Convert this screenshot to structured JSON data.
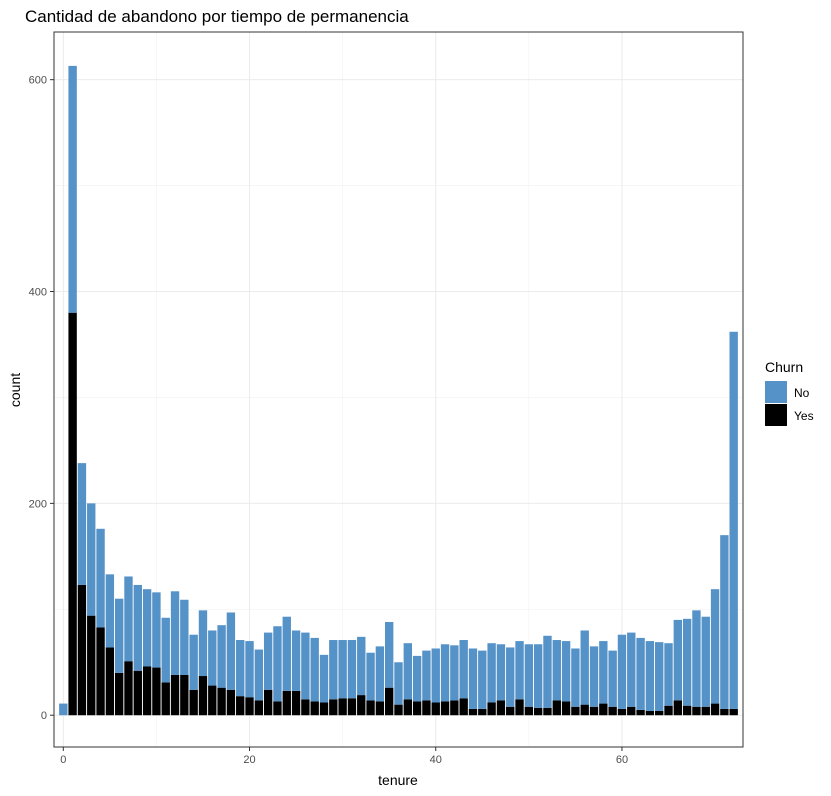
{
  "chart_data": {
    "type": "bar",
    "stacked": true,
    "title": "Cantidad de abandono por tiempo de permanencia",
    "xlabel": "tenure",
    "ylabel": "count",
    "xlim": [
      -1,
      73
    ],
    "ylim": [
      -30,
      645
    ],
    "xticks": [
      0,
      20,
      40,
      60
    ],
    "yticks": [
      0,
      200,
      400,
      600
    ],
    "grid": true,
    "legend": {
      "title": "Churn",
      "position": "right"
    },
    "x": [
      0,
      1,
      2,
      3,
      4,
      5,
      6,
      7,
      8,
      9,
      10,
      11,
      12,
      13,
      14,
      15,
      16,
      17,
      18,
      19,
      20,
      21,
      22,
      23,
      24,
      25,
      26,
      27,
      28,
      29,
      30,
      31,
      32,
      33,
      34,
      35,
      36,
      37,
      38,
      39,
      40,
      41,
      42,
      43,
      44,
      45,
      46,
      47,
      48,
      49,
      50,
      51,
      52,
      53,
      54,
      55,
      56,
      57,
      58,
      59,
      60,
      61,
      62,
      63,
      64,
      65,
      66,
      67,
      68,
      69,
      70,
      71,
      72
    ],
    "series": [
      {
        "name": "No",
        "color": "#5592c8",
        "values": [
          11,
          233,
          115,
          106,
          93,
          69,
          70,
          80,
          81,
          73,
          71,
          61,
          79,
          71,
          52,
          62,
          52,
          59,
          73,
          53,
          53,
          48,
          54,
          71,
          70,
          57,
          63,
          60,
          45,
          56,
          55,
          55,
          55,
          45,
          52,
          62,
          40,
          53,
          43,
          47,
          51,
          54,
          52,
          55,
          57,
          55,
          56,
          53,
          56,
          55,
          59,
          60,
          68,
          57,
          57,
          55,
          70,
          57,
          59,
          53,
          70,
          70,
          68,
          66,
          65,
          59,
          76,
          82,
          91,
          85,
          108,
          164,
          356
        ]
      },
      {
        "name": "Yes",
        "color": "#000000",
        "values": [
          0,
          380,
          123,
          94,
          83,
          64,
          40,
          51,
          42,
          46,
          45,
          31,
          38,
          38,
          24,
          37,
          28,
          26,
          24,
          18,
          17,
          14,
          24,
          13,
          23,
          23,
          15,
          13,
          12,
          15,
          16,
          16,
          19,
          14,
          13,
          26,
          10,
          15,
          13,
          14,
          12,
          13,
          14,
          16,
          6,
          6,
          12,
          14,
          8,
          15,
          8,
          7,
          7,
          14,
          13,
          8,
          10,
          8,
          11,
          8,
          6,
          8,
          5,
          4,
          4,
          9,
          14,
          9,
          8,
          8,
          11,
          6,
          6
        ]
      }
    ]
  }
}
